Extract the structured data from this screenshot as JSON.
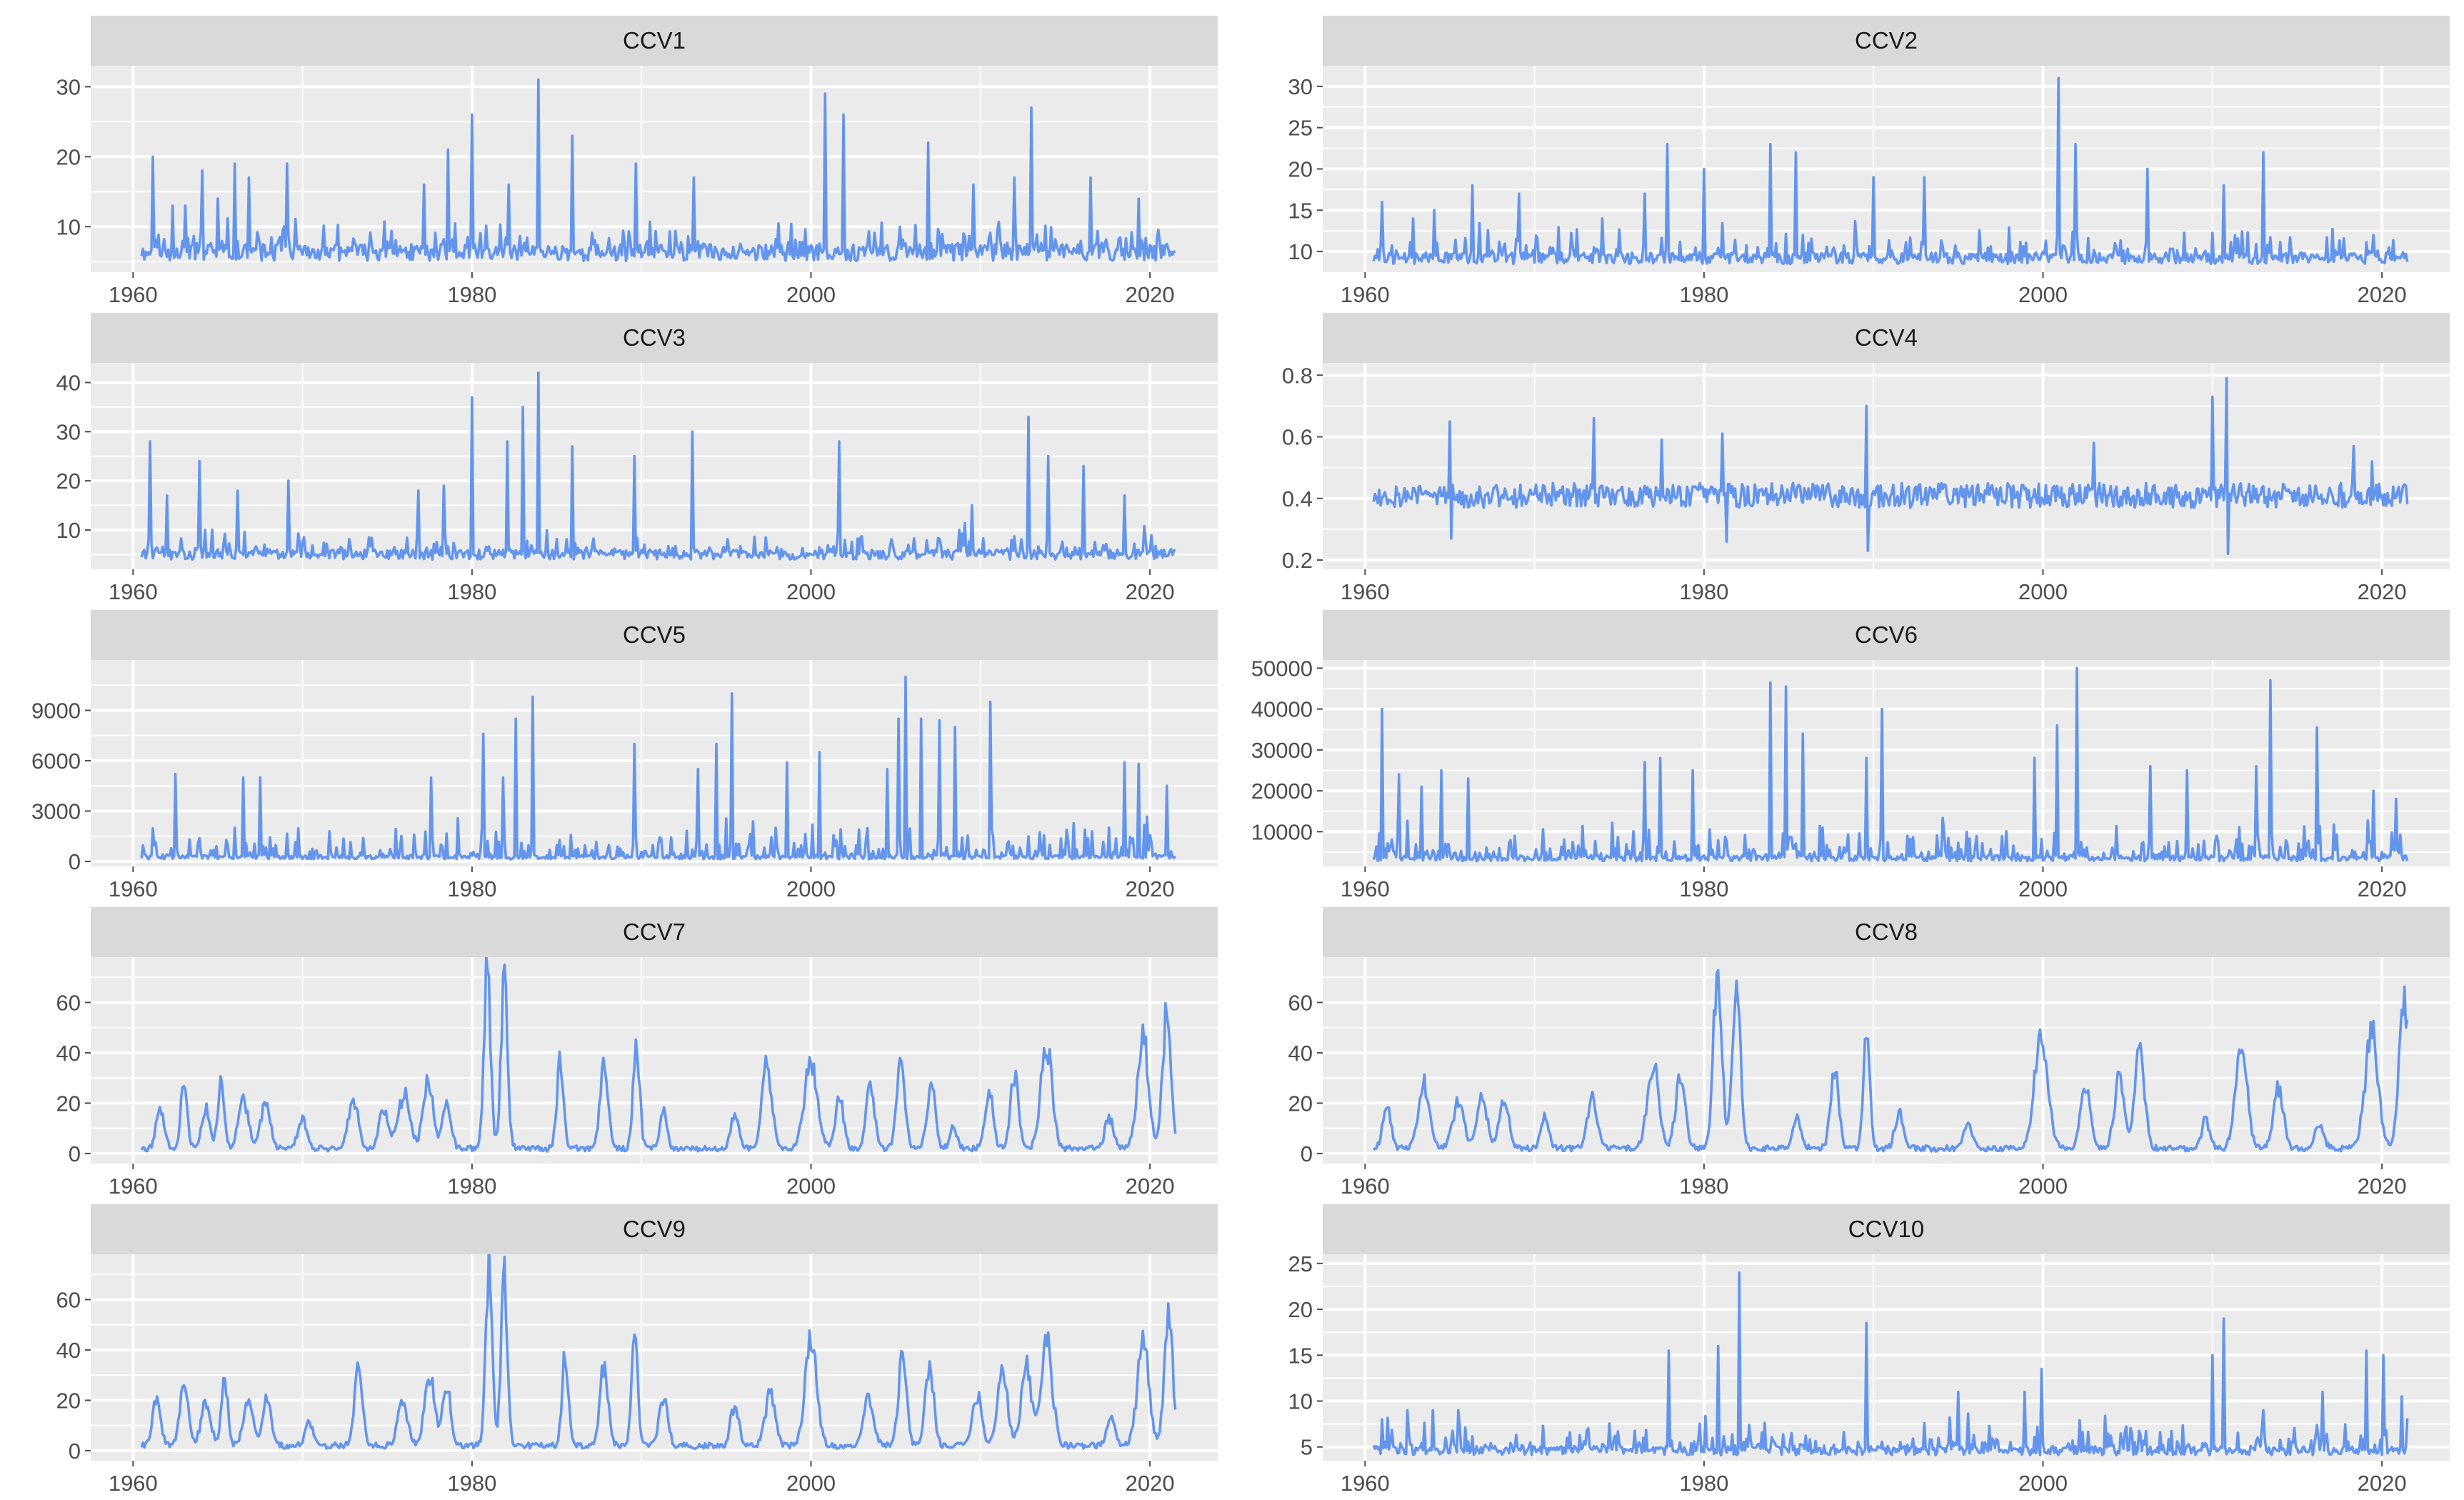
{
  "figure": {
    "layout": "facet-grid",
    "rows": 5,
    "cols": 2
  },
  "colors": {
    "line": "#6495ED",
    "panel": "#EBEBEB",
    "strip": "#D9D9D9",
    "grid": "#FFFFFF",
    "tick": "#4D4D4D"
  },
  "chart_data": [
    {
      "type": "line",
      "title": "CCV1",
      "xlabel": "",
      "ylabel": "",
      "xlim": [
        1957.5,
        2024
      ],
      "ylim": [
        3.5,
        33
      ],
      "xticks": [
        1960,
        1980,
        2000,
        2020
      ],
      "yticks": [
        10,
        20,
        30
      ],
      "x_start": 1960.5,
      "x_end": 2021.5,
      "baseline": 6.3,
      "noise": 1.2,
      "small_spike_rate": 0.3,
      "small_spike_max": 5,
      "seed": 11,
      "peaks": [
        [
          1961.2,
          20
        ],
        [
          1962.3,
          13
        ],
        [
          1963.1,
          13
        ],
        [
          1964.1,
          18
        ],
        [
          1965.0,
          14
        ],
        [
          1966.0,
          19
        ],
        [
          1966.8,
          17
        ],
        [
          1969.1,
          19
        ],
        [
          1977.2,
          16
        ],
        [
          1978.6,
          21
        ],
        [
          1980.0,
          26
        ],
        [
          1982.2,
          16
        ],
        [
          1983.9,
          31
        ],
        [
          1985.9,
          23
        ],
        [
          1989.7,
          19
        ],
        [
          1993.1,
          17
        ],
        [
          2000.8,
          29
        ],
        [
          2001.9,
          26
        ],
        [
          2006.9,
          22
        ],
        [
          2009.6,
          16
        ],
        [
          2012.0,
          17
        ],
        [
          2013.0,
          27
        ],
        [
          2016.5,
          17
        ],
        [
          2019.3,
          14
        ]
      ]
    },
    {
      "type": "line",
      "title": "CCV2",
      "xlabel": "",
      "ylabel": "",
      "xlim": [
        1957.5,
        2024
      ],
      "ylim": [
        7.5,
        32.5
      ],
      "xticks": [
        1960,
        1980,
        2000,
        2020
      ],
      "yticks": [
        10,
        15,
        20,
        25,
        30
      ],
      "x_start": 1960.5,
      "x_end": 2021.5,
      "baseline": 9.2,
      "noise": 0.7,
      "small_spike_rate": 0.3,
      "small_spike_max": 4,
      "seed": 12,
      "peaks": [
        [
          1961.0,
          16
        ],
        [
          1962.8,
          14
        ],
        [
          1964.1,
          15
        ],
        [
          1966.3,
          18
        ],
        [
          1969.1,
          17
        ],
        [
          1974.0,
          14
        ],
        [
          1976.5,
          17
        ],
        [
          1977.8,
          23
        ],
        [
          1980.0,
          20
        ],
        [
          1983.9,
          23
        ],
        [
          1985.4,
          22
        ],
        [
          1990.0,
          19
        ],
        [
          1993.0,
          19
        ],
        [
          2000.9,
          31
        ],
        [
          2001.9,
          23
        ],
        [
          2006.2,
          20
        ],
        [
          2010.7,
          18
        ],
        [
          2013.0,
          22
        ]
      ]
    },
    {
      "type": "line",
      "title": "CCV3",
      "xlabel": "",
      "ylabel": "",
      "xlim": [
        1957.5,
        2024
      ],
      "ylim": [
        2,
        44
      ],
      "xticks": [
        1960,
        1980,
        2000,
        2020
      ],
      "yticks": [
        10,
        20,
        30,
        40
      ],
      "x_start": 1960.5,
      "x_end": 2021.5,
      "baseline": 5,
      "noise": 1.0,
      "small_spike_rate": 0.3,
      "small_spike_max": 6,
      "seed": 13,
      "peaks": [
        [
          1961.0,
          28
        ],
        [
          1962.0,
          17
        ],
        [
          1963.9,
          24
        ],
        [
          1966.2,
          18
        ],
        [
          1969.2,
          20
        ],
        [
          1976.8,
          18
        ],
        [
          1978.3,
          19
        ],
        [
          1980.0,
          37
        ],
        [
          1982.1,
          28
        ],
        [
          1983.0,
          35
        ],
        [
          1983.9,
          42
        ],
        [
          1985.9,
          27
        ],
        [
          1989.6,
          25
        ],
        [
          1993.0,
          30
        ],
        [
          2001.7,
          28
        ],
        [
          2009.5,
          15
        ],
        [
          2012.8,
          33
        ],
        [
          2014.0,
          25
        ],
        [
          2016.1,
          23
        ],
        [
          2018.5,
          17
        ]
      ]
    },
    {
      "type": "line",
      "title": "CCV4",
      "xlabel": "",
      "ylabel": "",
      "xlim": [
        1957.5,
        2024
      ],
      "ylim": [
        0.17,
        0.84
      ],
      "xticks": [
        1960,
        1980,
        2000,
        2020
      ],
      "yticks": [
        0.2,
        0.4,
        0.6,
        0.8
      ],
      "x_start": 1960.5,
      "x_end": 2021.5,
      "baseline": 0.41,
      "noise": 0.04,
      "small_spike_rate": 0.0,
      "small_spike_max": 0,
      "seed": 14,
      "peaks": [
        [
          1965.0,
          0.65
        ],
        [
          1965.1,
          0.27
        ],
        [
          1973.5,
          0.66
        ],
        [
          1977.5,
          0.59
        ],
        [
          1981.1,
          0.61
        ],
        [
          1981.3,
          0.26
        ],
        [
          1989.6,
          0.7
        ],
        [
          1989.7,
          0.23
        ],
        [
          2003.0,
          0.58
        ],
        [
          2010.0,
          0.73
        ],
        [
          2010.8,
          0.79
        ],
        [
          2010.9,
          0.22
        ],
        [
          2018.3,
          0.57
        ],
        [
          2019.4,
          0.52
        ]
      ]
    },
    {
      "type": "line",
      "title": "CCV5",
      "xlabel": "",
      "ylabel": "",
      "xlim": [
        1957.5,
        2024
      ],
      "ylim": [
        -300,
        12000
      ],
      "xticks": [
        1960,
        1980,
        2000,
        2020
      ],
      "yticks": [
        0,
        3000,
        6000,
        9000
      ],
      "x_start": 1960.5,
      "x_end": 2021.5,
      "baseline": 250,
      "noise": 120,
      "small_spike_rate": 0.4,
      "small_spike_max": 2500,
      "seed": 15,
      "peaks": [
        [
          1962.5,
          5200
        ],
        [
          1966.5,
          5000
        ],
        [
          1967.5,
          5000
        ],
        [
          1977.6,
          5000
        ],
        [
          1980.7,
          7600
        ],
        [
          1981.8,
          5000
        ],
        [
          1982.6,
          8500
        ],
        [
          1983.6,
          9800
        ],
        [
          1989.6,
          7000
        ],
        [
          1993.3,
          5500
        ],
        [
          1994.4,
          7000
        ],
        [
          1995.3,
          10000
        ],
        [
          1998.6,
          5900
        ],
        [
          2000.5,
          6500
        ],
        [
          2004.5,
          5500
        ],
        [
          2005.2,
          8500
        ],
        [
          2005.6,
          11000
        ],
        [
          2006.5,
          8500
        ],
        [
          2007.6,
          8400
        ],
        [
          2008.5,
          8000
        ],
        [
          2010.6,
          9500
        ],
        [
          2018.5,
          5900
        ],
        [
          2019.3,
          5800
        ],
        [
          2021.0,
          4500
        ]
      ]
    },
    {
      "type": "line",
      "title": "CCV6",
      "xlabel": "",
      "ylabel": "",
      "xlim": [
        1957.5,
        2024
      ],
      "ylim": [
        1500,
        52000
      ],
      "xticks": [
        1960,
        1980,
        2000,
        2020
      ],
      "yticks": [
        10000,
        20000,
        30000,
        40000,
        50000
      ],
      "x_start": 1960.5,
      "x_end": 2021.5,
      "baseline": 3500,
      "noise": 700,
      "small_spike_rate": 0.4,
      "small_spike_max": 10000,
      "seed": 16,
      "peaks": [
        [
          1961.0,
          40000
        ],
        [
          1962.0,
          24000
        ],
        [
          1963.3,
          21000
        ],
        [
          1964.5,
          25000
        ],
        [
          1966.1,
          23000
        ],
        [
          1976.5,
          27000
        ],
        [
          1977.4,
          28000
        ],
        [
          1979.3,
          25000
        ],
        [
          1983.9,
          46500
        ],
        [
          1984.8,
          45500
        ],
        [
          1985.8,
          34000
        ],
        [
          1989.6,
          28000
        ],
        [
          1990.5,
          40000
        ],
        [
          1999.5,
          28000
        ],
        [
          2000.8,
          36000
        ],
        [
          2002.0,
          50000
        ],
        [
          2006.3,
          26000
        ],
        [
          2008.5,
          25000
        ],
        [
          2012.6,
          26000
        ],
        [
          2013.4,
          47000
        ],
        [
          2016.2,
          35500
        ],
        [
          2019.5,
          20000
        ],
        [
          2020.8,
          18000
        ]
      ]
    },
    {
      "type": "line",
      "title": "CCV7",
      "xlabel": "",
      "ylabel": "",
      "xlim": [
        1957.5,
        2024
      ],
      "ylim": [
        -4,
        78
      ],
      "xticks": [
        1960,
        1980,
        2000,
        2020
      ],
      "yticks": [
        0,
        20,
        40,
        60
      ],
      "x_start": 1960.5,
      "x_end": 2021.5,
      "baseline": 2,
      "noise": 1.2,
      "small_spike_rate": 0.0,
      "small_spike_max": 0,
      "seed": 17,
      "waves": [
        [
          1961.6,
          15,
          0.5
        ],
        [
          1963.0,
          25,
          0.4
        ],
        [
          1964.3,
          15,
          0.5
        ],
        [
          1965.2,
          26,
          0.4
        ],
        [
          1966.5,
          20,
          0.6
        ],
        [
          1967.8,
          18,
          0.6
        ],
        [
          1970.0,
          13,
          0.5
        ],
        [
          1973.0,
          19,
          0.6
        ],
        [
          1974.8,
          15,
          0.6
        ],
        [
          1976.0,
          22,
          0.7
        ],
        [
          1977.4,
          27,
          0.6
        ],
        [
          1978.5,
          20,
          0.5
        ],
        [
          1980.9,
          72,
          0.4
        ],
        [
          1981.9,
          66,
          0.4
        ],
        [
          1985.2,
          34,
          0.4
        ],
        [
          1987.8,
          33,
          0.5
        ],
        [
          1989.7,
          41,
          0.4
        ],
        [
          1991.3,
          16,
          0.4
        ],
        [
          1995.5,
          13,
          0.5
        ],
        [
          1997.4,
          33,
          0.6
        ],
        [
          2000.0,
          34,
          0.8
        ],
        [
          2001.7,
          20,
          0.5
        ],
        [
          2003.5,
          25,
          0.5
        ],
        [
          2005.3,
          35,
          0.5
        ],
        [
          2007.1,
          27,
          0.5
        ],
        [
          2008.4,
          10,
          0.4
        ],
        [
          2010.5,
          23,
          0.5
        ],
        [
          2012.0,
          29,
          0.5
        ],
        [
          2013.9,
          39,
          0.7
        ],
        [
          2017.6,
          12,
          0.5
        ],
        [
          2019.6,
          43,
          0.7
        ],
        [
          2021.0,
          56,
          0.5
        ]
      ]
    },
    {
      "type": "line",
      "title": "CCV8",
      "xlabel": "",
      "ylabel": "",
      "xlim": [
        1957.5,
        2024
      ],
      "ylim": [
        -4,
        78
      ],
      "xticks": [
        1960,
        1980,
        2000,
        2020
      ],
      "yticks": [
        0,
        20,
        40,
        60
      ],
      "x_start": 1960.5,
      "x_end": 2021.5,
      "baseline": 2,
      "noise": 1.2,
      "small_spike_rate": 0.0,
      "small_spike_max": 0,
      "seed": 18,
      "waves": [
        [
          1961.3,
          17,
          0.5
        ],
        [
          1963.5,
          25,
          0.7
        ],
        [
          1965.5,
          18,
          0.7
        ],
        [
          1966.9,
          22,
          0.6
        ],
        [
          1968.2,
          20,
          0.6
        ],
        [
          1970.6,
          12,
          0.5
        ],
        [
          1973.4,
          20,
          0.6
        ],
        [
          1977.0,
          33,
          0.7
        ],
        [
          1978.6,
          27,
          0.6
        ],
        [
          1980.8,
          73,
          0.5
        ],
        [
          1981.9,
          66,
          0.5
        ],
        [
          1985.5,
          12,
          0.5
        ],
        [
          1987.7,
          32,
          0.5
        ],
        [
          1989.6,
          45,
          0.4
        ],
        [
          1991.5,
          14,
          0.5
        ],
        [
          1995.6,
          10,
          0.5
        ],
        [
          1999.9,
          47,
          0.8
        ],
        [
          2002.5,
          24,
          0.6
        ],
        [
          2004.5,
          28,
          0.6
        ],
        [
          2005.7,
          40,
          0.6
        ],
        [
          2009.6,
          12,
          0.5
        ],
        [
          2011.7,
          43,
          0.7
        ],
        [
          2013.9,
          24,
          0.6
        ],
        [
          2016.3,
          11,
          0.5
        ],
        [
          2019.4,
          46,
          0.8
        ],
        [
          2021.3,
          57,
          0.6
        ]
      ]
    },
    {
      "type": "line",
      "title": "CCV9",
      "xlabel": "",
      "ylabel": "",
      "xlim": [
        1957.5,
        2024
      ],
      "ylim": [
        -4,
        78
      ],
      "xticks": [
        1960,
        1980,
        2000,
        2020
      ],
      "yticks": [
        0,
        20,
        40,
        60
      ],
      "x_start": 1960.5,
      "x_end": 2021.5,
      "baseline": 2,
      "noise": 1.2,
      "small_spike_rate": 0.0,
      "small_spike_max": 0,
      "seed": 19,
      "waves": [
        [
          1961.4,
          18,
          0.5
        ],
        [
          1963.0,
          25,
          0.5
        ],
        [
          1964.3,
          17,
          0.6
        ],
        [
          1965.4,
          26,
          0.4
        ],
        [
          1966.8,
          17,
          0.6
        ],
        [
          1967.9,
          20,
          0.5
        ],
        [
          1970.4,
          10,
          0.5
        ],
        [
          1973.3,
          30,
          0.5
        ],
        [
          1975.9,
          18,
          0.6
        ],
        [
          1977.5,
          27,
          0.6
        ],
        [
          1978.5,
          23,
          0.5
        ],
        [
          1981.0,
          72,
          0.4
        ],
        [
          1981.9,
          65,
          0.4
        ],
        [
          1985.5,
          35,
          0.4
        ],
        [
          1987.8,
          33,
          0.5
        ],
        [
          1989.6,
          40,
          0.4
        ],
        [
          1991.3,
          20,
          0.5
        ],
        [
          1995.5,
          16,
          0.5
        ],
        [
          1997.6,
          22,
          0.6
        ],
        [
          2000.0,
          43,
          0.7
        ],
        [
          2003.4,
          20,
          0.6
        ],
        [
          2005.4,
          36,
          0.5
        ],
        [
          2007.0,
          32,
          0.5
        ],
        [
          2009.8,
          20,
          0.6
        ],
        [
          2011.3,
          30,
          0.6
        ],
        [
          2012.7,
          34,
          0.6
        ],
        [
          2013.9,
          40,
          0.7
        ],
        [
          2017.7,
          12,
          0.5
        ],
        [
          2019.6,
          43,
          0.7
        ],
        [
          2021.1,
          55,
          0.5
        ]
      ]
    },
    {
      "type": "line",
      "title": "CCV10",
      "xlabel": "",
      "ylabel": "",
      "xlim": [
        1957.5,
        2024
      ],
      "ylim": [
        3.5,
        26
      ],
      "xticks": [
        1960,
        1980,
        2000,
        2020
      ],
      "yticks": [
        5,
        10,
        15,
        20,
        25
      ],
      "x_start": 1960.5,
      "x_end": 2021.5,
      "baseline": 4.6,
      "noise": 0.5,
      "small_spike_rate": 0.4,
      "small_spike_max": 4,
      "seed": 20,
      "peaks": [
        [
          1961.0,
          8
        ],
        [
          1962.5,
          9
        ],
        [
          1964.0,
          9
        ],
        [
          1965.5,
          9
        ],
        [
          1977.9,
          15.5
        ],
        [
          1980.8,
          16
        ],
        [
          1982.1,
          24
        ],
        [
          1989.6,
          18.5
        ],
        [
          1995.0,
          11
        ],
        [
          1998.9,
          11
        ],
        [
          1999.9,
          13.5
        ],
        [
          2010.0,
          15
        ],
        [
          2010.7,
          19
        ],
        [
          2013.0,
          9
        ],
        [
          2016.5,
          11
        ],
        [
          2019.1,
          15.5
        ],
        [
          2020.1,
          15
        ],
        [
          2021.2,
          10.5
        ]
      ]
    }
  ]
}
